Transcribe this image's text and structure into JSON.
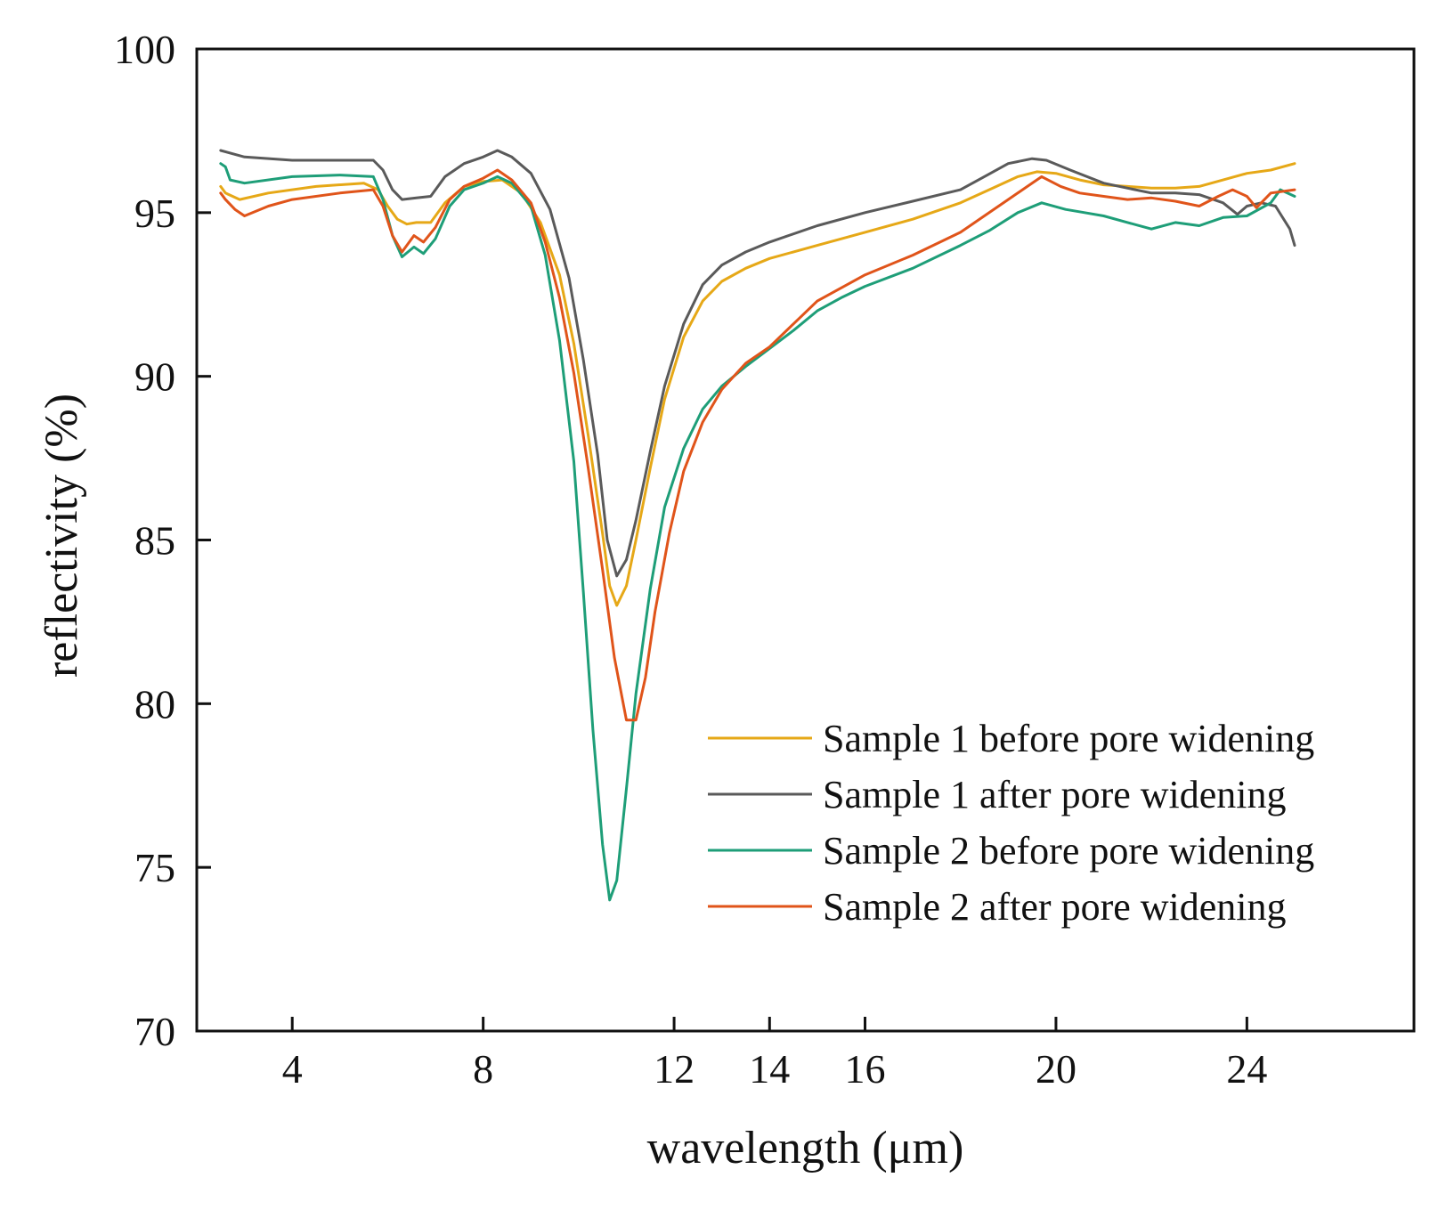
{
  "chart_data": {
    "type": "line",
    "title": "",
    "xlabel": "wavelength (μm)",
    "ylabel": "reflectivity (%)",
    "xlim": [
      2,
      27.5
    ],
    "ylim": [
      70,
      100
    ],
    "xticks": [
      4,
      8,
      12,
      14,
      16,
      20,
      24
    ],
    "xtick_labels": [
      "4",
      "8",
      "12",
      "14",
      "16",
      "20",
      "24"
    ],
    "yticks": [
      70,
      75,
      80,
      85,
      90,
      95,
      100
    ],
    "ytick_labels": [
      "70",
      "75",
      "80",
      "85",
      "90",
      "95",
      "100"
    ],
    "grid": false,
    "legend_position": "lower-right",
    "series": [
      {
        "name": "Sample 1 before pore widening",
        "color": "#E6A817",
        "points": [
          [
            2.5,
            95.8
          ],
          [
            2.6,
            95.6
          ],
          [
            2.9,
            95.4
          ],
          [
            3.5,
            95.6
          ],
          [
            4.5,
            95.8
          ],
          [
            5.5,
            95.9
          ],
          [
            5.8,
            95.7
          ],
          [
            6.0,
            95.2
          ],
          [
            6.2,
            94.8
          ],
          [
            6.4,
            94.65
          ],
          [
            6.6,
            94.7
          ],
          [
            6.9,
            94.7
          ],
          [
            7.2,
            95.3
          ],
          [
            7.6,
            95.8
          ],
          [
            8.0,
            95.95
          ],
          [
            8.4,
            96.0
          ],
          [
            8.8,
            95.6
          ],
          [
            9.2,
            94.7
          ],
          [
            9.6,
            93.1
          ],
          [
            9.9,
            91.0
          ],
          [
            10.2,
            88.2
          ],
          [
            10.5,
            85.2
          ],
          [
            10.65,
            83.6
          ],
          [
            10.8,
            83.0
          ],
          [
            11.0,
            83.6
          ],
          [
            11.2,
            85.0
          ],
          [
            11.5,
            87.2
          ],
          [
            11.8,
            89.3
          ],
          [
            12.2,
            91.2
          ],
          [
            12.6,
            92.3
          ],
          [
            13.0,
            92.9
          ],
          [
            13.5,
            93.3
          ],
          [
            14,
            93.6
          ],
          [
            15,
            94.0
          ],
          [
            16,
            94.4
          ],
          [
            17,
            94.8
          ],
          [
            18,
            95.3
          ],
          [
            18.6,
            95.7
          ],
          [
            19.2,
            96.1
          ],
          [
            19.6,
            96.25
          ],
          [
            20,
            96.2
          ],
          [
            20.5,
            96.0
          ],
          [
            21,
            95.85
          ],
          [
            21.5,
            95.8
          ],
          [
            22,
            95.75
          ],
          [
            22.5,
            95.75
          ],
          [
            23,
            95.8
          ],
          [
            23.5,
            96.0
          ],
          [
            24,
            96.2
          ],
          [
            24.5,
            96.3
          ],
          [
            25,
            96.5
          ]
        ]
      },
      {
        "name": "Sample 1 after pore widening",
        "color": "#5A5A5A",
        "points": [
          [
            2.5,
            96.9
          ],
          [
            3,
            96.7
          ],
          [
            4,
            96.6
          ],
          [
            5,
            96.6
          ],
          [
            5.7,
            96.6
          ],
          [
            5.9,
            96.3
          ],
          [
            6.1,
            95.7
          ],
          [
            6.3,
            95.4
          ],
          [
            6.6,
            95.45
          ],
          [
            6.9,
            95.5
          ],
          [
            7.2,
            96.1
          ],
          [
            7.6,
            96.5
          ],
          [
            8.0,
            96.7
          ],
          [
            8.3,
            96.9
          ],
          [
            8.6,
            96.7
          ],
          [
            9.0,
            96.2
          ],
          [
            9.4,
            95.1
          ],
          [
            9.8,
            93.0
          ],
          [
            10.1,
            90.5
          ],
          [
            10.4,
            87.6
          ],
          [
            10.6,
            85.0
          ],
          [
            10.8,
            83.9
          ],
          [
            11.0,
            84.4
          ],
          [
            11.2,
            85.6
          ],
          [
            11.5,
            87.7
          ],
          [
            11.8,
            89.7
          ],
          [
            12.2,
            91.6
          ],
          [
            12.6,
            92.8
          ],
          [
            13.0,
            93.4
          ],
          [
            13.5,
            93.8
          ],
          [
            14,
            94.1
          ],
          [
            15,
            94.6
          ],
          [
            16,
            95.0
          ],
          [
            17,
            95.35
          ],
          [
            18,
            95.7
          ],
          [
            18.5,
            96.1
          ],
          [
            19,
            96.5
          ],
          [
            19.5,
            96.65
          ],
          [
            19.8,
            96.6
          ],
          [
            20.3,
            96.3
          ],
          [
            21,
            95.9
          ],
          [
            21.5,
            95.75
          ],
          [
            22,
            95.6
          ],
          [
            22.5,
            95.6
          ],
          [
            23,
            95.55
          ],
          [
            23.5,
            95.3
          ],
          [
            23.8,
            94.95
          ],
          [
            24.0,
            95.2
          ],
          [
            24.3,
            95.3
          ],
          [
            24.6,
            95.2
          ],
          [
            24.9,
            94.5
          ],
          [
            25,
            94.0
          ]
        ]
      },
      {
        "name": "Sample 2 before pore widening",
        "color": "#1E9E78",
        "points": [
          [
            2.5,
            96.5
          ],
          [
            2.6,
            96.4
          ],
          [
            2.7,
            96.0
          ],
          [
            3,
            95.9
          ],
          [
            4,
            96.1
          ],
          [
            5,
            96.15
          ],
          [
            5.7,
            96.1
          ],
          [
            5.9,
            95.4
          ],
          [
            6.1,
            94.3
          ],
          [
            6.3,
            93.65
          ],
          [
            6.55,
            93.95
          ],
          [
            6.75,
            93.75
          ],
          [
            7.0,
            94.2
          ],
          [
            7.3,
            95.2
          ],
          [
            7.6,
            95.7
          ],
          [
            8.0,
            95.9
          ],
          [
            8.3,
            96.1
          ],
          [
            8.6,
            95.9
          ],
          [
            9.0,
            95.2
          ],
          [
            9.3,
            93.7
          ],
          [
            9.6,
            91.1
          ],
          [
            9.9,
            87.4
          ],
          [
            10.1,
            83.4
          ],
          [
            10.3,
            79.2
          ],
          [
            10.5,
            75.7
          ],
          [
            10.65,
            74.0
          ],
          [
            10.8,
            74.6
          ],
          [
            11.0,
            77.4
          ],
          [
            11.2,
            80.3
          ],
          [
            11.5,
            83.5
          ],
          [
            11.8,
            86.0
          ],
          [
            12.2,
            87.8
          ],
          [
            12.6,
            89.0
          ],
          [
            13.0,
            89.7
          ],
          [
            13.5,
            90.3
          ],
          [
            14,
            90.85
          ],
          [
            14.5,
            91.4
          ],
          [
            15,
            92.0
          ],
          [
            15.5,
            92.4
          ],
          [
            16,
            92.75
          ],
          [
            17,
            93.3
          ],
          [
            18,
            94.0
          ],
          [
            18.6,
            94.45
          ],
          [
            19.2,
            95.0
          ],
          [
            19.7,
            95.3
          ],
          [
            20.2,
            95.1
          ],
          [
            20.6,
            95.0
          ],
          [
            21,
            94.9
          ],
          [
            21.5,
            94.7
          ],
          [
            22,
            94.5
          ],
          [
            22.5,
            94.7
          ],
          [
            23,
            94.6
          ],
          [
            23.5,
            94.85
          ],
          [
            24,
            94.9
          ],
          [
            24.5,
            95.3
          ],
          [
            24.7,
            95.7
          ],
          [
            25,
            95.5
          ]
        ]
      },
      {
        "name": "Sample 2 after pore widening",
        "color": "#E0541A",
        "points": [
          [
            2.5,
            95.6
          ],
          [
            2.6,
            95.4
          ],
          [
            2.8,
            95.1
          ],
          [
            3,
            94.9
          ],
          [
            3.5,
            95.2
          ],
          [
            4,
            95.4
          ],
          [
            5,
            95.6
          ],
          [
            5.7,
            95.7
          ],
          [
            5.9,
            95.2
          ],
          [
            6.1,
            94.3
          ],
          [
            6.3,
            93.8
          ],
          [
            6.55,
            94.3
          ],
          [
            6.75,
            94.1
          ],
          [
            7.0,
            94.55
          ],
          [
            7.3,
            95.4
          ],
          [
            7.6,
            95.8
          ],
          [
            8.0,
            96.05
          ],
          [
            8.3,
            96.3
          ],
          [
            8.6,
            96.0
          ],
          [
            9.0,
            95.3
          ],
          [
            9.3,
            94.1
          ],
          [
            9.6,
            92.4
          ],
          [
            9.9,
            90.1
          ],
          [
            10.2,
            87.2
          ],
          [
            10.5,
            84.1
          ],
          [
            10.75,
            81.4
          ],
          [
            11.0,
            79.5
          ],
          [
            11.2,
            79.5
          ],
          [
            11.4,
            80.8
          ],
          [
            11.6,
            82.8
          ],
          [
            11.9,
            85.2
          ],
          [
            12.2,
            87.1
          ],
          [
            12.6,
            88.6
          ],
          [
            13.0,
            89.6
          ],
          [
            13.5,
            90.4
          ],
          [
            14,
            90.9
          ],
          [
            14.5,
            91.6
          ],
          [
            15,
            92.3
          ],
          [
            16,
            93.1
          ],
          [
            17,
            93.7
          ],
          [
            18,
            94.4
          ],
          [
            18.5,
            94.9
          ],
          [
            19.0,
            95.4
          ],
          [
            19.4,
            95.8
          ],
          [
            19.7,
            96.1
          ],
          [
            20.1,
            95.8
          ],
          [
            20.5,
            95.6
          ],
          [
            21,
            95.5
          ],
          [
            21.5,
            95.4
          ],
          [
            22,
            95.45
          ],
          [
            22.5,
            95.35
          ],
          [
            23,
            95.2
          ],
          [
            23.4,
            95.5
          ],
          [
            23.7,
            95.7
          ],
          [
            24.0,
            95.5
          ],
          [
            24.2,
            95.15
          ],
          [
            24.5,
            95.6
          ],
          [
            25,
            95.7
          ]
        ]
      }
    ]
  }
}
